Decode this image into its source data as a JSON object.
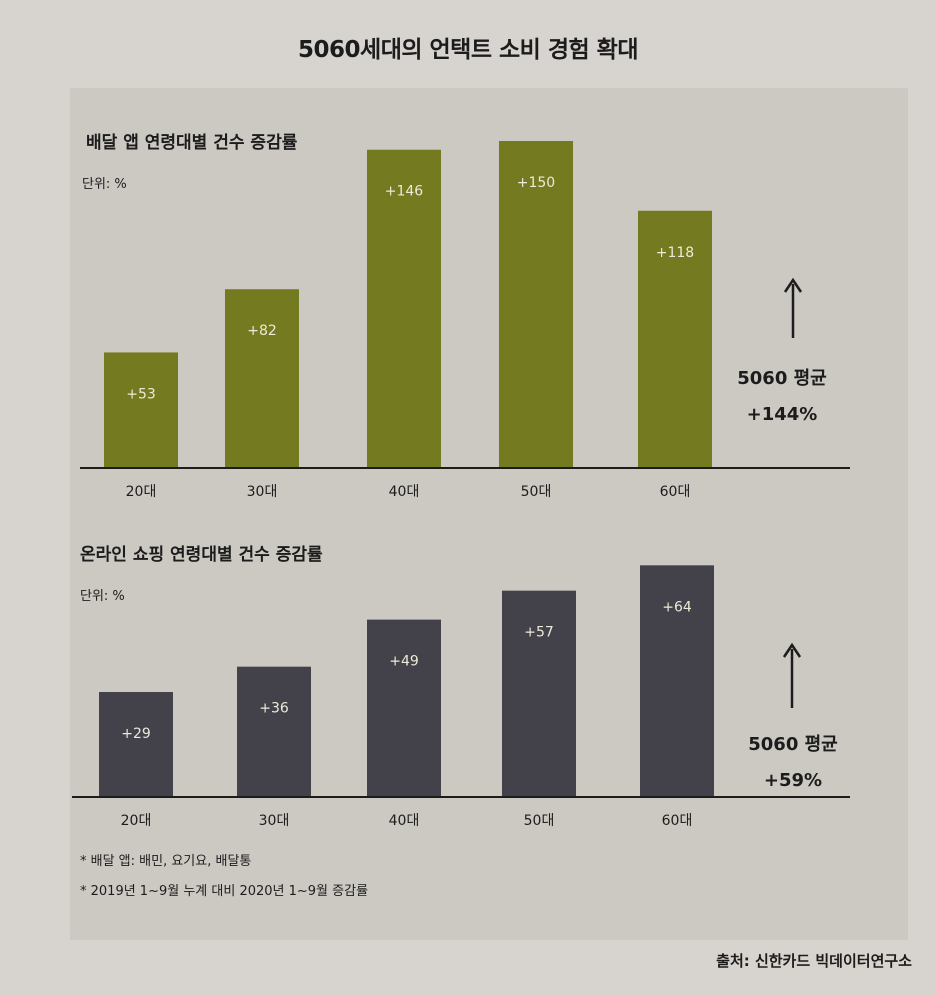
{
  "title": "5060세대의 언택트 소비 경험 확대",
  "colors": {
    "delivery_bar": "#737a1f",
    "shopping_bar": "#434149",
    "bar_label": "#ecead8",
    "axis": "#1c1c1c"
  },
  "chart_data": [
    {
      "type": "bar",
      "title": "배달 앱 연령대별 건수 증감률",
      "unit": "단위: %",
      "categories": [
        "20대",
        "30대",
        "40대",
        "50대",
        "60대"
      ],
      "values": [
        53,
        82,
        146,
        150,
        118
      ],
      "data_labels": [
        "+53",
        "+82",
        "+146",
        "+150",
        "+118"
      ],
      "average_label": "5060 평균",
      "average_value": "+144%",
      "arrow_icon": "up-arrow-icon",
      "ylim": [
        0,
        160
      ]
    },
    {
      "type": "bar",
      "title": "온라인 쇼핑 연령대별 건수 증감률",
      "unit": "단위: %",
      "categories": [
        "20대",
        "30대",
        "40대",
        "50대",
        "60대"
      ],
      "values": [
        29,
        36,
        49,
        57,
        64
      ],
      "data_labels": [
        "+29",
        "+36",
        "+49",
        "+57",
        "+64"
      ],
      "average_label": "5060 평균",
      "average_value": "+59%",
      "arrow_icon": "up-arrow-icon",
      "ylim": [
        0,
        70
      ]
    }
  ],
  "footnotes": [
    "* 배달 앱: 배민, 요기요, 배달통",
    "* 2019년 1~9월 누계 대비 2020년 1~9월 증감률"
  ],
  "source": "출처: 신한카드 빅데이터연구소"
}
